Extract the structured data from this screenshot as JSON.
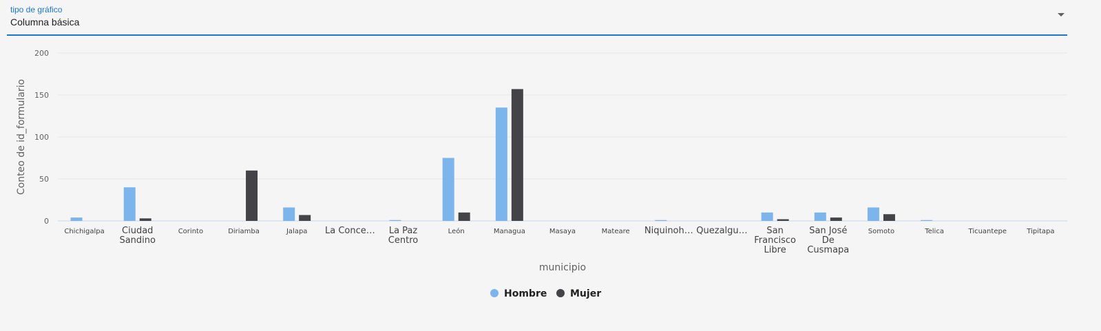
{
  "selector": {
    "label": "tipo de gráfico",
    "value": "Columna básica"
  },
  "colors": {
    "accent": "#1976d2",
    "hombre": "#7cb5ec",
    "mujer": "#434348",
    "grid": "#e6e6e6"
  },
  "chart_data": {
    "type": "bar",
    "xlabel": "municipio",
    "ylabel": "Conteo de id_formulario",
    "ylim": [
      0,
      200
    ],
    "yticks": [
      0,
      50,
      100,
      150,
      200
    ],
    "grid": true,
    "legend_position": "bottom",
    "categories": [
      "Chichigalpa",
      "Ciudad Sandino",
      "Corinto",
      "Diriamba",
      "Jalapa",
      "La Conce…",
      "La Paz Centro",
      "León",
      "Managua",
      "Masaya",
      "Mateare",
      "Niquinoh…",
      "Quezalgu…",
      "San Francisco Libre",
      "San José De Cusmapa",
      "Somoto",
      "Telica",
      "Ticuantepe",
      "Tipitapa"
    ],
    "category_lines": [
      [
        "Chichigalpa"
      ],
      [
        "Ciudad",
        "Sandino"
      ],
      [
        "Corinto"
      ],
      [
        "Diriamba"
      ],
      [
        "Jalapa"
      ],
      [
        "La Conce…"
      ],
      [
        "La Paz",
        "Centro"
      ],
      [
        "León"
      ],
      [
        "Managua"
      ],
      [
        "Masaya"
      ],
      [
        "Mateare"
      ],
      [
        "Niquinoh…"
      ],
      [
        "Quezalgu…"
      ],
      [
        "San",
        "Francisco",
        "Libre"
      ],
      [
        "San José",
        "De",
        "Cusmapa"
      ],
      [
        "Somoto"
      ],
      [
        "Telica"
      ],
      [
        "Ticuantepe"
      ],
      [
        "Tipitapa"
      ]
    ],
    "category_large": [
      false,
      true,
      false,
      false,
      false,
      true,
      true,
      false,
      false,
      false,
      false,
      true,
      true,
      true,
      true,
      false,
      false,
      false,
      false
    ],
    "series": [
      {
        "name": "Hombre",
        "color": "#7cb5ec",
        "values": [
          4,
          40,
          0,
          0,
          16,
          0,
          1,
          75,
          135,
          0,
          0,
          1,
          0,
          10,
          10,
          16,
          1,
          0,
          0
        ]
      },
      {
        "name": "Mujer",
        "color": "#434348",
        "values": [
          0,
          3,
          0,
          60,
          7,
          0,
          0,
          10,
          157,
          0,
          0,
          0,
          0,
          2,
          4,
          8,
          0,
          0,
          0
        ]
      }
    ]
  }
}
